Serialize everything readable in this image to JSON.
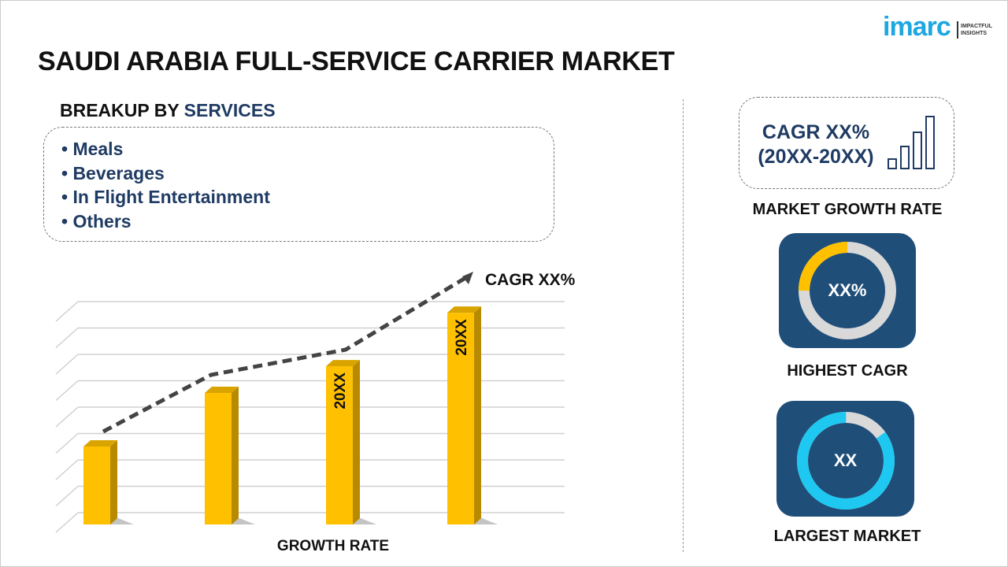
{
  "title": "SAUDI ARABIA FULL-SERVICE CARRIER MARKET",
  "logo": {
    "text": "imarc",
    "tagline_line1": "IMPACTFUL",
    "tagline_line2": "INSIGHTS"
  },
  "breakup": {
    "prefix": "BREAKUP BY ",
    "highlight": "SERVICES",
    "items": [
      "• Meals",
      "• Beverages",
      "• In Flight Entertainment",
      "• Others"
    ]
  },
  "growth_chart": {
    "bar_relative_heights": [
      0.35,
      0.59,
      0.71,
      0.95
    ],
    "bar_labels": [
      "",
      "",
      "20XX",
      "20XX"
    ],
    "trend_label": "CAGR XX%",
    "xlabel": "GROWTH RATE",
    "bar_color": "#ffc000"
  },
  "market_growth": {
    "line1": "CAGR XX%",
    "line2": "(20XX-20XX)",
    "label": "MARKET GROWTH RATE",
    "icon": "bar-chart-icon"
  },
  "highest_cagr": {
    "value": "XX%",
    "label": "HIGHEST CAGR",
    "fill_fraction": 0.25,
    "color": "#ffc000"
  },
  "largest_market": {
    "value": "XX",
    "label": "LARGEST MARKET",
    "fill_fraction": 0.85,
    "color": "#1ec8f0"
  },
  "colors": {
    "navy": "#1f3b63",
    "tile": "#1f4e79",
    "accent": "#1ea7e1"
  }
}
